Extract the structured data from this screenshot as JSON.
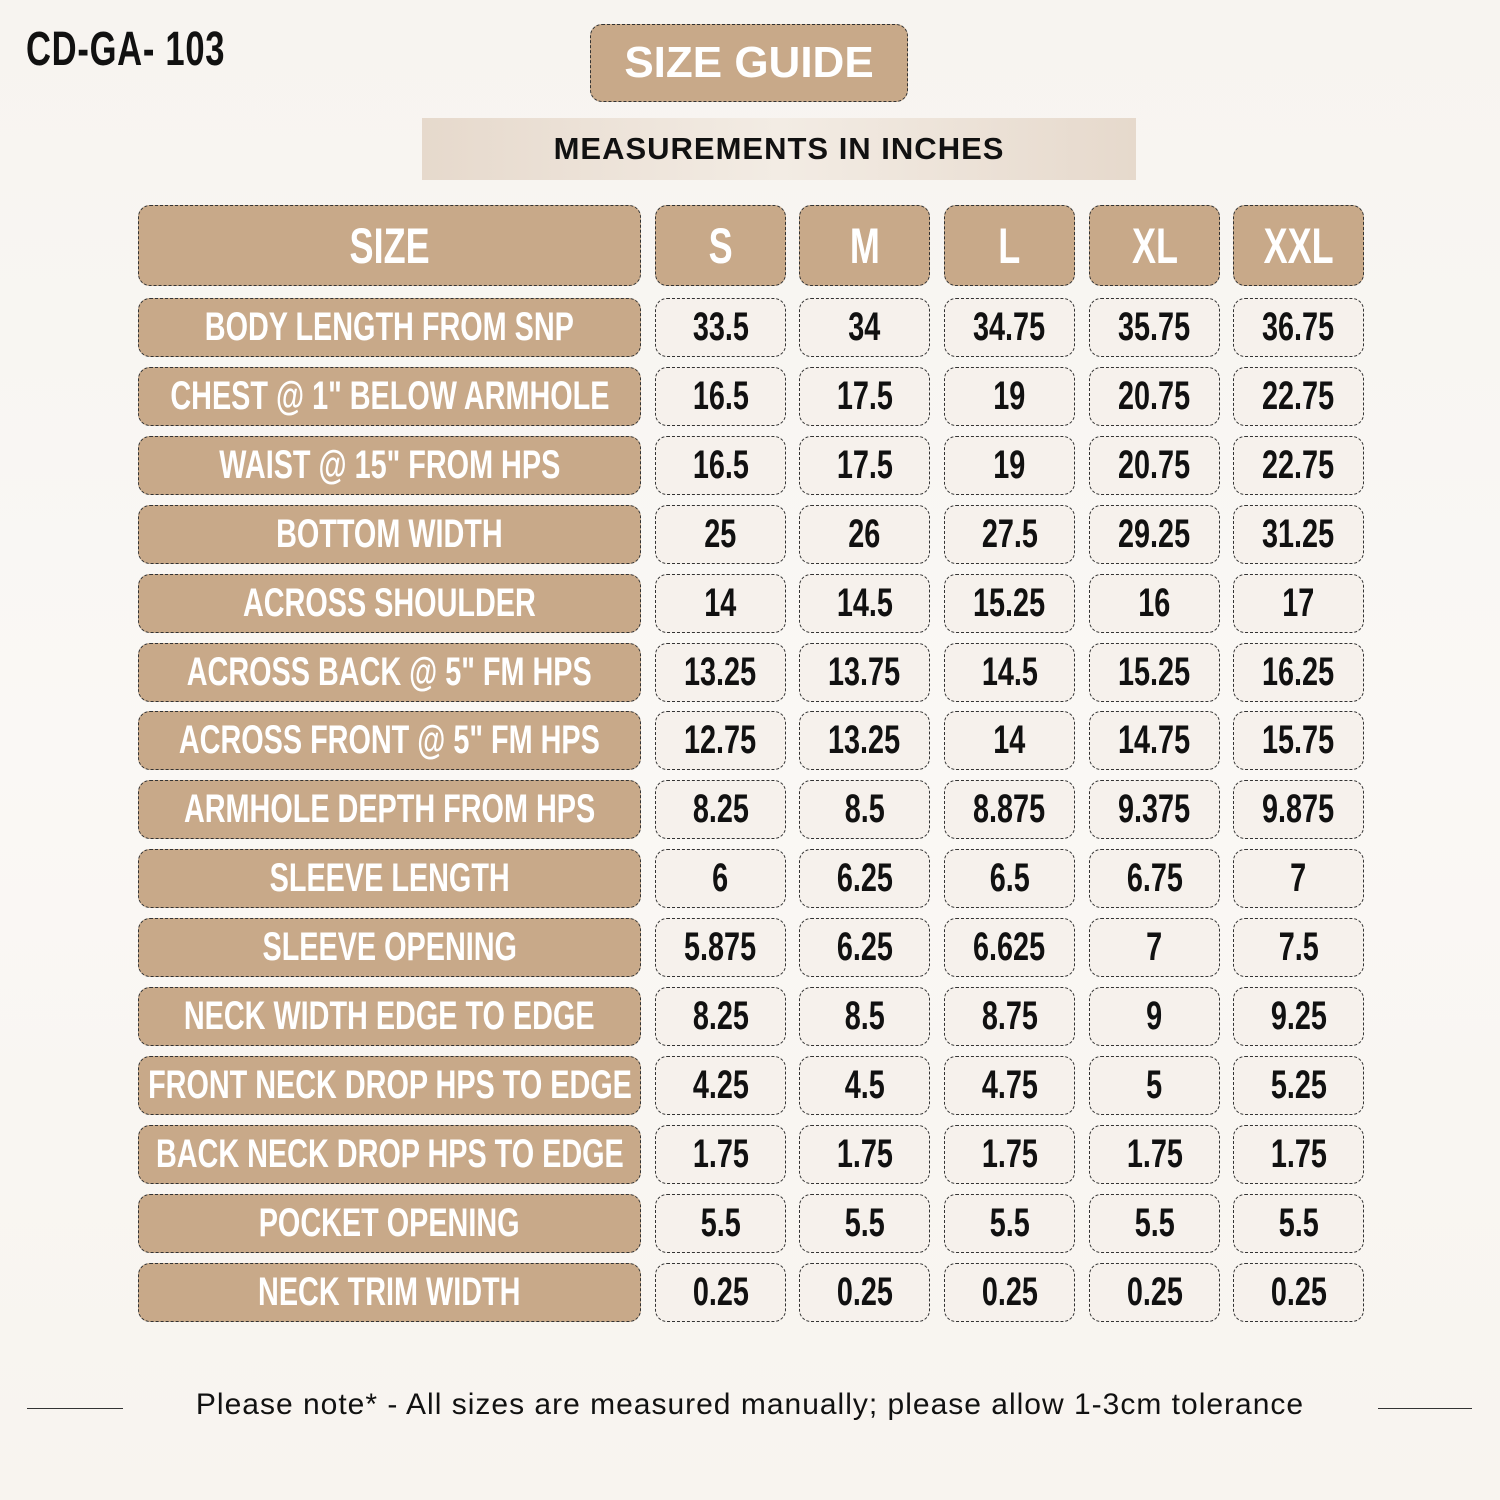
{
  "product_code": "CD-GA- 103",
  "title": "SIZE GUIDE",
  "subtitle": "MEASUREMENTS IN INCHES",
  "colors": {
    "label_fill": "#c8a989",
    "value_fill": "#f6f1ec",
    "text_dark": "#111111"
  },
  "table": {
    "header": [
      "SIZE",
      "S",
      "M",
      "L",
      "XL",
      "XXL"
    ],
    "rows": [
      {
        "label": "BODY LENGTH FROM SNP",
        "values": [
          "33.5",
          "34",
          "34.75",
          "35.75",
          "36.75"
        ]
      },
      {
        "label": "CHEST @ 1\" BELOW ARMHOLE",
        "values": [
          "16.5",
          "17.5",
          "19",
          "20.75",
          "22.75"
        ]
      },
      {
        "label": "WAIST @ 15\" FROM HPS",
        "values": [
          "16.5",
          "17.5",
          "19",
          "20.75",
          "22.75"
        ]
      },
      {
        "label": "BOTTOM WIDTH",
        "values": [
          "25",
          "26",
          "27.5",
          "29.25",
          "31.25"
        ]
      },
      {
        "label": "ACROSS SHOULDER",
        "values": [
          "14",
          "14.5",
          "15.25",
          "16",
          "17"
        ]
      },
      {
        "label": "ACROSS BACK @ 5\" FM HPS",
        "values": [
          "13.25",
          "13.75",
          "14.5",
          "15.25",
          "16.25"
        ]
      },
      {
        "label": "ACROSS FRONT @ 5\" FM HPS",
        "values": [
          "12.75",
          "13.25",
          "14",
          "14.75",
          "15.75"
        ]
      },
      {
        "label": "ARMHOLE DEPTH FROM HPS",
        "values": [
          "8.25",
          "8.5",
          "8.875",
          "9.375",
          "9.875"
        ]
      },
      {
        "label": "SLEEVE LENGTH",
        "values": [
          "6",
          "6.25",
          "6.5",
          "6.75",
          "7"
        ]
      },
      {
        "label": "SLEEVE OPENING",
        "values": [
          "5.875",
          "6.25",
          "6.625",
          "7",
          "7.5"
        ]
      },
      {
        "label": "NECK WIDTH EDGE TO EDGE",
        "values": [
          "8.25",
          "8.5",
          "8.75",
          "9",
          "9.25"
        ]
      },
      {
        "label": "FRONT NECK DROP HPS TO EDGE",
        "values": [
          "4.25",
          "4.5",
          "4.75",
          "5",
          "5.25"
        ]
      },
      {
        "label": "BACK NECK DROP HPS TO EDGE",
        "values": [
          "1.75",
          "1.75",
          "1.75",
          "1.75",
          "1.75"
        ]
      },
      {
        "label": "POCKET OPENING",
        "values": [
          "5.5",
          "5.5",
          "5.5",
          "5.5",
          "5.5"
        ]
      },
      {
        "label": "NECK TRIM WIDTH",
        "values": [
          "0.25",
          "0.25",
          "0.25",
          "0.25",
          "0.25"
        ]
      }
    ]
  },
  "note": "Please note* - All sizes are measured manually; please allow 1-3cm tolerance"
}
